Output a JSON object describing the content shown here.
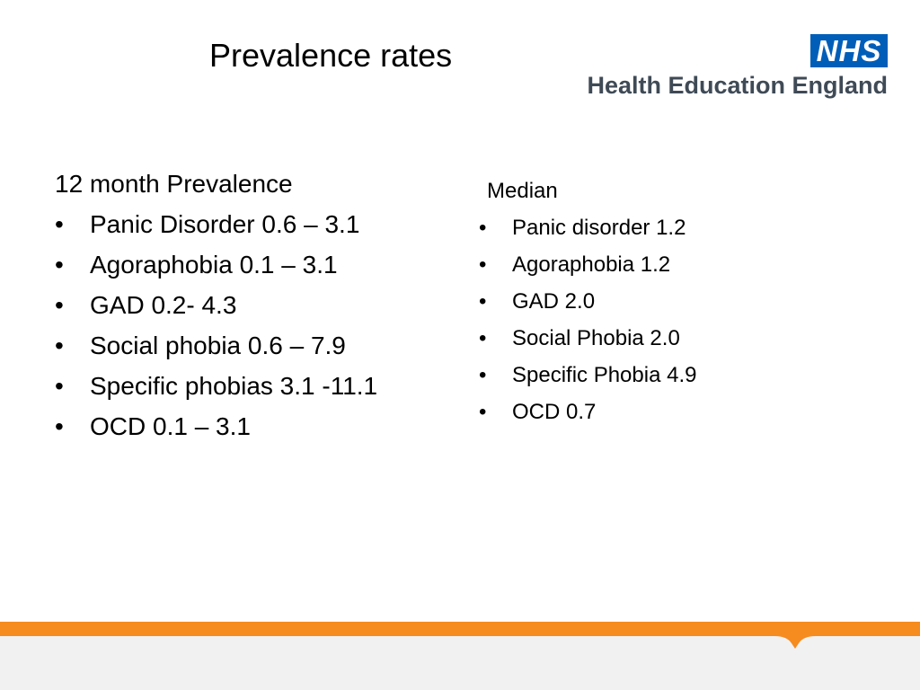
{
  "slide": {
    "title": "Prevalence rates"
  },
  "logo": {
    "nhs": "NHS",
    "org": "Health Education England",
    "colors": {
      "nhs_blue": "#005eb8",
      "text_grey": "#3f4a56"
    }
  },
  "left_column": {
    "heading": "12 month Prevalence",
    "items": [
      "Panic Disorder 0.6 – 3.1",
      "Agoraphobia 0.1 – 3.1",
      "GAD 0.2- 4.3",
      "Social phobia 0.6 – 7.9",
      "Specific phobias 3.1 -11.1",
      "OCD 0.1 – 3.1"
    ]
  },
  "right_column": {
    "heading": "Median",
    "items": [
      "Panic disorder 1.2",
      "Agoraphobia 1.2",
      "GAD 2.0",
      "Social Phobia 2.0",
      "Specific Phobia 4.9",
      "OCD 0.7"
    ]
  },
  "bullet": "•",
  "footer": {
    "colors": {
      "band": "#f68b1f",
      "base": "#f1f1f1"
    }
  }
}
